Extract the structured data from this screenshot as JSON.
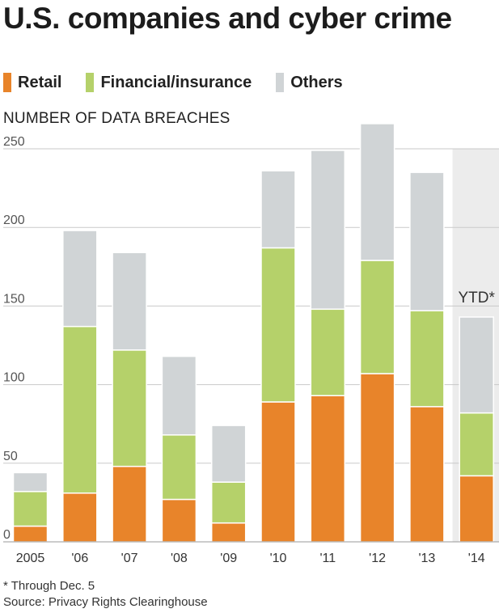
{
  "title": "U.S. companies and cyber crime",
  "legend": [
    {
      "label": "Retail",
      "color": "#e8842a"
    },
    {
      "label": "Financial/insurance",
      "color": "#b5d16a"
    },
    {
      "label": "Others",
      "color": "#d0d4d6"
    }
  ],
  "footnote": "* Through Dec. 5",
  "source": "Source: Privacy Rights Clearinghouse",
  "chart_data": {
    "type": "bar",
    "stacked": true,
    "ylabel": "NUMBER OF DATA BREACHES",
    "xlabel": "",
    "ylim": [
      0,
      250
    ],
    "yticks": [
      0,
      50,
      100,
      150,
      200,
      250
    ],
    "grid": true,
    "legend_position": "top",
    "categories": [
      "2005",
      "'06",
      "'07",
      "'08",
      "'09",
      "'10",
      "'11",
      "'12",
      "'13",
      "'14"
    ],
    "series": [
      {
        "name": "Retail",
        "color": "#e8842a",
        "values": [
          10,
          31,
          48,
          27,
          12,
          89,
          93,
          107,
          86,
          42
        ]
      },
      {
        "name": "Financial/insurance",
        "color": "#b5d16a",
        "values": [
          22,
          106,
          74,
          41,
          26,
          98,
          55,
          72,
          61,
          40
        ]
      },
      {
        "name": "Others",
        "color": "#d0d4d6",
        "values": [
          12,
          61,
          62,
          50,
          36,
          49,
          101,
          87,
          88,
          61
        ]
      }
    ],
    "highlight": {
      "category": "'14",
      "label": "YTD*",
      "color": "#ececec"
    }
  }
}
